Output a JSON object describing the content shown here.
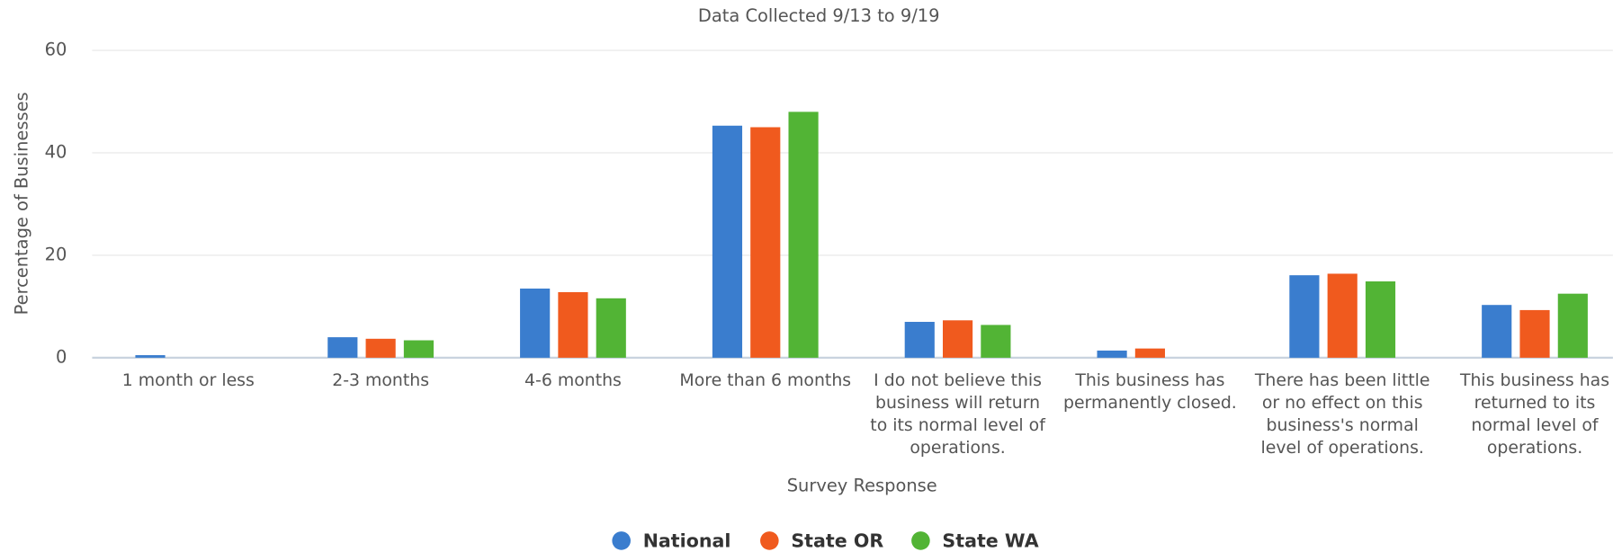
{
  "chart_data": {
    "type": "bar",
    "title": "Data Collected 9/13 to 9/19",
    "x_label": "Survey Response",
    "y_label": "Percentage of Businesses",
    "categories": [
      "1 month or less",
      "2-3 months",
      "4-6 months",
      "More than 6 months",
      "I do not believe this business will return to its normal level of operations.",
      "This business has permanently closed.",
      "There has been little or no effect on this business's normal level of operations.",
      "This business has returned to its normal level of operations."
    ],
    "series": [
      {
        "name": "National",
        "color": "#3a7dce",
        "values": [
          0.5,
          4,
          13.5,
          45.3,
          7,
          1.4,
          16.1,
          10.3
        ]
      },
      {
        "name": "State OR",
        "color": "#f05a1e",
        "values": [
          0,
          3.7,
          12.8,
          45,
          7.3,
          1.8,
          16.4,
          9.3
        ]
      },
      {
        "name": "State WA",
        "color": "#52b435",
        "values": [
          0,
          3.4,
          11.6,
          48,
          6.4,
          0,
          14.9,
          12.5
        ]
      }
    ],
    "ylim": [
      0,
      60
    ],
    "yticks": [
      0,
      20,
      40,
      60
    ],
    "grid": true,
    "legend": "bottom"
  }
}
